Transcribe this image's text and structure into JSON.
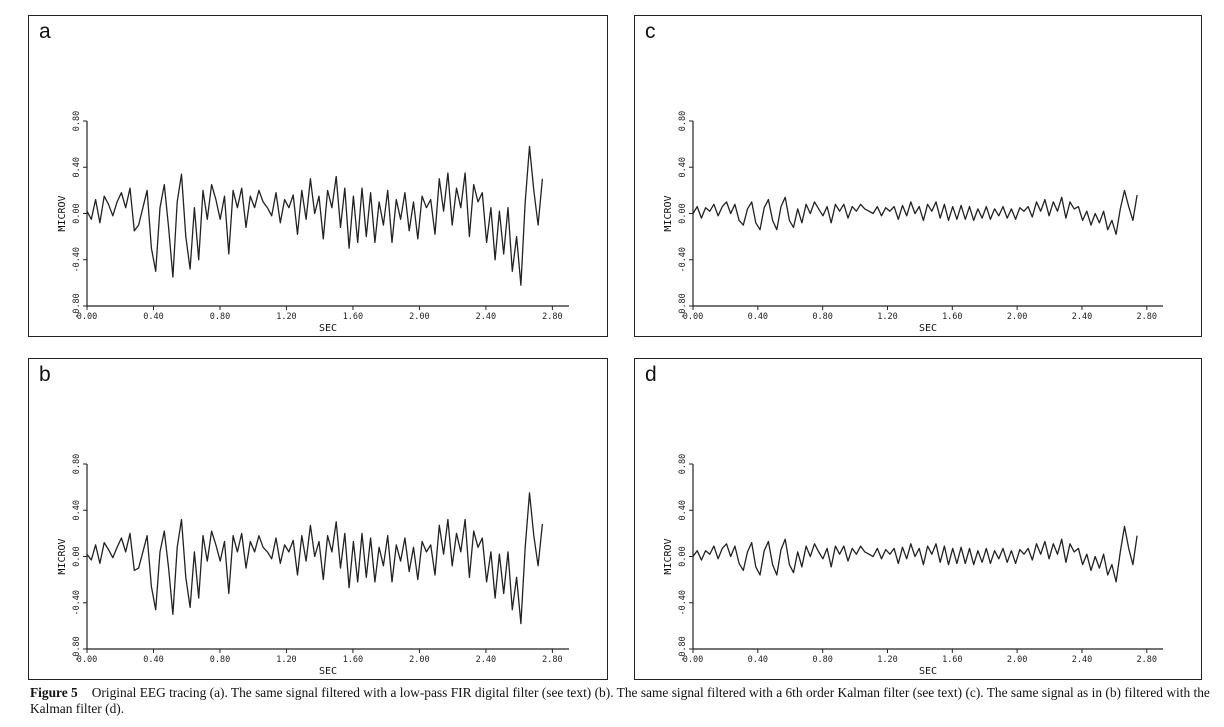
{
  "caption": {
    "label": "Figure 5",
    "text": "Original EEG tracing (a). The same signal filtered with a low-pass FIR digital filter (see text) (b). The same signal filtered with a 6th order Kalman filter (see text) (c). The same signal as in (b) filtered with the Kalman filter (d)."
  },
  "chart_data": [
    {
      "panel": "a",
      "type": "line",
      "xlabel": "SEC",
      "ylabel": "MICROV",
      "xlim": [
        0,
        2.9
      ],
      "ylim": [
        -0.8,
        0.8
      ],
      "xticks": [
        "0.00",
        "0.40",
        "0.80",
        "1.20",
        "1.60",
        "2.00",
        "2.40",
        "2.80"
      ],
      "yticks": [
        "-0.80",
        "-0.40",
        "0.00",
        "0.40",
        "0.80"
      ],
      "series": [
        {
          "values": [
            0.02,
            -0.05,
            0.12,
            -0.08,
            0.15,
            0.08,
            -0.02,
            0.1,
            0.18,
            0.05,
            0.22,
            -0.15,
            -0.1,
            0.05,
            0.2,
            -0.3,
            -0.5,
            0.05,
            0.25,
            -0.12,
            -0.55,
            0.1,
            0.34,
            -0.2,
            -0.48,
            0.05,
            -0.4,
            0.2,
            -0.05,
            0.25,
            0.12,
            -0.05,
            0.15,
            -0.35,
            0.2,
            0.05,
            0.22,
            -0.12,
            0.15,
            0.05,
            0.2,
            0.1,
            0.05,
            -0.02,
            0.18,
            -0.08,
            0.12,
            0.05,
            0.16,
            -0.18,
            0.2,
            -0.05,
            0.3,
            0.0,
            0.15,
            -0.22,
            0.2,
            0.05,
            0.32,
            -0.12,
            0.22,
            -0.3,
            0.15,
            -0.25,
            0.22,
            -0.2,
            0.18,
            -0.25,
            0.1,
            -0.1,
            0.2,
            -0.25,
            0.12,
            -0.05,
            0.18,
            -0.15,
            0.1,
            -0.22,
            0.15,
            0.05,
            0.12,
            -0.18,
            0.3,
            0.02,
            0.35,
            -0.1,
            0.22,
            0.05,
            0.35,
            -0.2,
            0.25,
            0.1,
            0.18,
            -0.25,
            0.05,
            -0.4,
            0.02,
            -0.35,
            0.05,
            -0.5,
            -0.2,
            -0.62,
            0.1,
            0.58,
            0.2,
            -0.1,
            0.3
          ]
        }
      ]
    },
    {
      "panel": "b",
      "type": "line",
      "xlabel": "SEC",
      "ylabel": "MICROV",
      "xlim": [
        0,
        2.9
      ],
      "ylim": [
        -0.8,
        0.8
      ],
      "xticks": [
        "0.00",
        "0.40",
        "0.80",
        "1.20",
        "1.60",
        "2.00",
        "2.40",
        "2.80"
      ],
      "yticks": [
        "-0.80",
        "-0.40",
        "0.00",
        "0.40",
        "0.80"
      ],
      "series": [
        {
          "values": [
            0.02,
            -0.03,
            0.1,
            -0.06,
            0.12,
            0.06,
            -0.01,
            0.08,
            0.16,
            0.04,
            0.2,
            -0.12,
            -0.1,
            0.04,
            0.18,
            -0.26,
            -0.46,
            0.04,
            0.22,
            -0.1,
            -0.5,
            0.08,
            0.32,
            -0.18,
            -0.44,
            0.04,
            -0.36,
            0.18,
            -0.04,
            0.22,
            0.1,
            -0.04,
            0.13,
            -0.32,
            0.18,
            0.04,
            0.2,
            -0.1,
            0.13,
            0.04,
            0.18,
            0.08,
            0.04,
            -0.02,
            0.16,
            -0.06,
            0.1,
            0.04,
            0.14,
            -0.16,
            0.18,
            -0.04,
            0.27,
            0.0,
            0.13,
            -0.2,
            0.18,
            0.04,
            0.3,
            -0.1,
            0.2,
            -0.27,
            0.13,
            -0.22,
            0.2,
            -0.18,
            0.16,
            -0.22,
            0.08,
            -0.08,
            0.18,
            -0.22,
            0.1,
            -0.04,
            0.16,
            -0.13,
            0.08,
            -0.2,
            0.13,
            0.04,
            0.1,
            -0.16,
            0.27,
            0.02,
            0.32,
            -0.08,
            0.2,
            0.04,
            0.32,
            -0.18,
            0.22,
            0.08,
            0.16,
            -0.22,
            0.04,
            -0.36,
            0.02,
            -0.32,
            0.04,
            -0.46,
            -0.18,
            -0.58,
            0.08,
            0.55,
            0.18,
            -0.08,
            0.28
          ]
        }
      ]
    },
    {
      "panel": "c",
      "type": "line",
      "xlabel": "SEC",
      "ylabel": "MICROV",
      "xlim": [
        0,
        2.9
      ],
      "ylim": [
        -0.8,
        0.8
      ],
      "xticks": [
        "0.00",
        "0.40",
        "0.80",
        "1.20",
        "1.60",
        "2.00",
        "2.40",
        "2.80"
      ],
      "yticks": [
        "-0.80",
        "-0.40",
        "0.00",
        "0.40",
        "0.80"
      ],
      "series": [
        {
          "values": [
            0.0,
            0.06,
            -0.04,
            0.05,
            0.02,
            0.08,
            -0.02,
            0.06,
            0.1,
            0.0,
            0.08,
            -0.06,
            -0.1,
            0.04,
            0.1,
            -0.08,
            -0.14,
            0.05,
            0.12,
            -0.06,
            -0.14,
            0.06,
            0.14,
            -0.06,
            -0.12,
            0.04,
            -0.08,
            0.08,
            0.0,
            0.1,
            0.04,
            -0.02,
            0.06,
            -0.08,
            0.08,
            0.02,
            0.08,
            -0.04,
            0.06,
            0.02,
            0.08,
            0.04,
            0.02,
            0.0,
            0.06,
            -0.02,
            0.05,
            0.02,
            0.06,
            -0.05,
            0.07,
            -0.02,
            0.1,
            0.0,
            0.06,
            -0.06,
            0.08,
            0.02,
            0.1,
            -0.04,
            0.08,
            -0.06,
            0.06,
            -0.05,
            0.07,
            -0.05,
            0.06,
            -0.06,
            0.04,
            -0.04,
            0.06,
            -0.05,
            0.04,
            -0.02,
            0.06,
            -0.04,
            0.04,
            -0.05,
            0.05,
            0.02,
            0.06,
            -0.03,
            0.1,
            0.02,
            0.12,
            -0.02,
            0.1,
            0.02,
            0.14,
            -0.04,
            0.1,
            0.04,
            0.06,
            -0.06,
            0.02,
            -0.1,
            0.0,
            -0.08,
            0.02,
            -0.14,
            -0.06,
            -0.18,
            0.04,
            0.2,
            0.06,
            -0.06,
            0.16
          ]
        }
      ]
    },
    {
      "panel": "d",
      "type": "line",
      "xlabel": "SEC",
      "ylabel": "MICROV",
      "xlim": [
        0,
        2.9
      ],
      "ylim": [
        -0.8,
        0.8
      ],
      "xticks": [
        "0.00",
        "0.40",
        "0.80",
        "1.20",
        "1.60",
        "2.00",
        "2.40",
        "2.80"
      ],
      "yticks": [
        "-0.80",
        "-0.40",
        "0.00",
        "0.40",
        "0.80"
      ],
      "series": [
        {
          "values": [
            0.0,
            0.05,
            -0.03,
            0.05,
            0.02,
            0.09,
            -0.02,
            0.07,
            0.11,
            0.0,
            0.09,
            -0.06,
            -0.12,
            0.04,
            0.12,
            -0.09,
            -0.16,
            0.05,
            0.13,
            -0.07,
            -0.16,
            0.06,
            0.15,
            -0.07,
            -0.14,
            0.04,
            -0.09,
            0.09,
            0.0,
            0.11,
            0.04,
            -0.02,
            0.07,
            -0.09,
            0.09,
            0.02,
            0.09,
            -0.04,
            0.07,
            0.02,
            0.09,
            0.04,
            0.02,
            0.0,
            0.07,
            -0.02,
            0.06,
            0.02,
            0.07,
            -0.06,
            0.08,
            -0.02,
            0.11,
            0.0,
            0.07,
            -0.07,
            0.09,
            0.02,
            0.11,
            -0.05,
            0.09,
            -0.07,
            0.07,
            -0.06,
            0.08,
            -0.06,
            0.07,
            -0.07,
            0.05,
            -0.05,
            0.07,
            -0.06,
            0.05,
            -0.02,
            0.07,
            -0.05,
            0.05,
            -0.06,
            0.06,
            0.02,
            0.07,
            -0.03,
            0.11,
            0.02,
            0.13,
            -0.02,
            0.11,
            0.02,
            0.15,
            -0.05,
            0.11,
            0.04,
            0.07,
            -0.07,
            0.02,
            -0.12,
            0.0,
            -0.1,
            0.02,
            -0.16,
            -0.07,
            -0.22,
            0.04,
            0.26,
            0.07,
            -0.07,
            0.18
          ]
        }
      ]
    }
  ]
}
